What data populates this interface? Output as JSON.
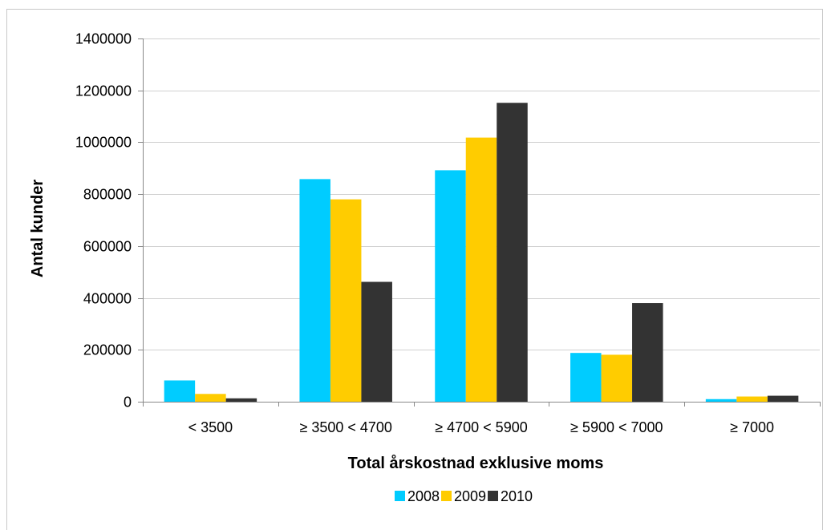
{
  "chart_data": {
    "type": "bar",
    "title": "",
    "xlabel": "Total årskostnad exklusive moms",
    "ylabel": "Antal kunder",
    "categories": [
      "< 3500",
      "≥ 3500 < 4700",
      "≥ 4700 < 5900",
      "≥ 5900 < 7000",
      "≥ 7000"
    ],
    "series": [
      {
        "name": "2008",
        "color": "#00ccff",
        "values": [
          82000,
          858000,
          892000,
          188000,
          10000
        ]
      },
      {
        "name": "2009",
        "color": "#ffcc00",
        "values": [
          30000,
          780000,
          1018000,
          181000,
          20000
        ]
      },
      {
        "name": "2010",
        "color": "#333333",
        "values": [
          13000,
          462000,
          1152000,
          380000,
          23000
        ]
      }
    ],
    "ylim": [
      0,
      1400000
    ],
    "yticks": [
      0,
      200000,
      400000,
      600000,
      800000,
      1000000,
      1200000,
      1400000
    ],
    "ytick_labels": [
      "0",
      "200000",
      "400000",
      "600000",
      "800000",
      "1000000",
      "1200000",
      "1400000"
    ],
    "grid": true,
    "legend_position": "bottom"
  }
}
